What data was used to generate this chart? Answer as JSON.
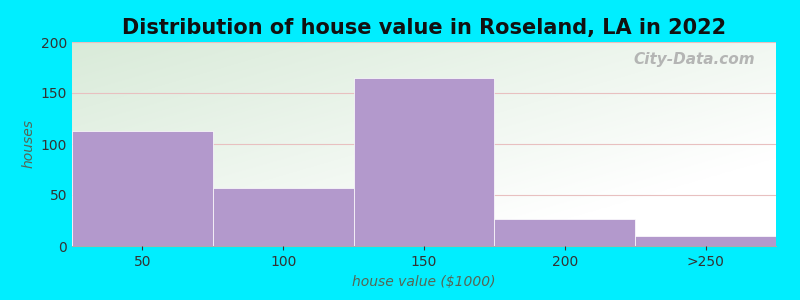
{
  "title": "Distribution of house value in Roseland, LA in 2022",
  "xlabel": "house value ($1000)",
  "ylabel": "houses",
  "bar_labels": [
    "50",
    "100",
    "150",
    "200",
    ">250"
  ],
  "bar_values": [
    113,
    57,
    165,
    26,
    10
  ],
  "bar_color": "#b399cc",
  "bar_edgecolor": "#b399cc",
  "ylim": [
    0,
    200
  ],
  "yticks": [
    0,
    50,
    100,
    150,
    200
  ],
  "background_outer": "#00eeff",
  "grid_color": "#e8c0c0",
  "title_fontsize": 15,
  "label_fontsize": 10,
  "tick_fontsize": 10,
  "watermark_text": "City-Data.com",
  "bg_color_left_top": "#d4ecd4",
  "bg_color_right_bottom": "#f0f8f0"
}
